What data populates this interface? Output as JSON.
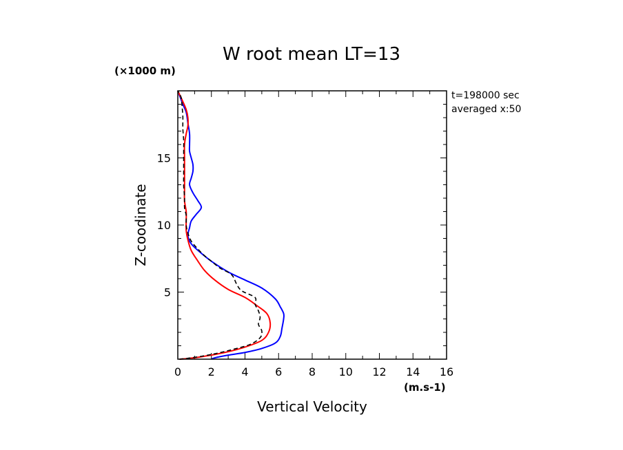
{
  "chart_data": {
    "type": "line",
    "title": "W root mean LT=13",
    "xlabel": "Vertical Velocity",
    "ylabel": "Z-coodinate",
    "x_unit": "(m.s-1)",
    "y_unit": "(×1000 m)",
    "xlim": [
      0,
      16
    ],
    "ylim": [
      0,
      20
    ],
    "x_ticks": [
      0,
      2,
      4,
      6,
      8,
      10,
      12,
      14,
      16
    ],
    "y_ticks": [
      5,
      10,
      15
    ],
    "grid": false,
    "annotations": [
      "t=198000 sec",
      "averaged  x:50"
    ],
    "series": [
      {
        "color": "#0000ff",
        "dash": "solid",
        "points": [
          [
            2.0,
            0.0
          ],
          [
            2.2,
            0.1
          ],
          [
            3.0,
            0.3
          ],
          [
            4.0,
            0.5
          ],
          [
            5.0,
            0.8
          ],
          [
            5.8,
            1.2
          ],
          [
            6.1,
            1.7
          ],
          [
            6.2,
            2.3
          ],
          [
            6.3,
            3.0
          ],
          [
            6.3,
            3.4
          ],
          [
            6.1,
            3.9
          ],
          [
            5.8,
            4.5
          ],
          [
            5.0,
            5.3
          ],
          [
            4.0,
            5.9
          ],
          [
            3.0,
            6.5
          ],
          [
            2.0,
            7.3
          ],
          [
            1.3,
            8.0
          ],
          [
            0.8,
            8.6
          ],
          [
            0.6,
            9.2
          ],
          [
            0.7,
            9.8
          ],
          [
            0.8,
            10.3
          ],
          [
            1.1,
            10.8
          ],
          [
            1.4,
            11.3
          ],
          [
            1.2,
            11.8
          ],
          [
            0.9,
            12.4
          ],
          [
            0.7,
            13.0
          ],
          [
            0.8,
            13.5
          ],
          [
            0.9,
            14.0
          ],
          [
            0.9,
            14.5
          ],
          [
            0.8,
            15.0
          ],
          [
            0.7,
            15.5
          ],
          [
            0.7,
            16.0
          ],
          [
            0.7,
            16.8
          ],
          [
            0.6,
            17.6
          ],
          [
            0.5,
            18.4
          ],
          [
            0.3,
            19.0
          ],
          [
            0.0,
            20.0
          ]
        ]
      },
      {
        "color": "#ff0000",
        "dash": "solid",
        "points": [
          [
            0.1,
            0.0
          ],
          [
            0.6,
            0.05
          ],
          [
            1.5,
            0.2
          ],
          [
            2.8,
            0.5
          ],
          [
            4.0,
            0.9
          ],
          [
            5.0,
            1.4
          ],
          [
            5.4,
            2.0
          ],
          [
            5.5,
            2.7
          ],
          [
            5.3,
            3.4
          ],
          [
            4.7,
            4.0
          ],
          [
            4.0,
            4.6
          ],
          [
            3.0,
            5.2
          ],
          [
            2.2,
            5.9
          ],
          [
            1.6,
            6.6
          ],
          [
            1.2,
            7.3
          ],
          [
            0.8,
            8.1
          ],
          [
            0.6,
            8.9
          ],
          [
            0.5,
            9.6
          ],
          [
            0.5,
            10.3
          ],
          [
            0.5,
            11.0
          ],
          [
            0.4,
            11.8
          ],
          [
            0.4,
            12.6
          ],
          [
            0.4,
            13.3
          ],
          [
            0.4,
            14.0
          ],
          [
            0.4,
            15.0
          ],
          [
            0.4,
            16.0
          ],
          [
            0.5,
            16.8
          ],
          [
            0.6,
            17.4
          ],
          [
            0.6,
            18.0
          ],
          [
            0.5,
            18.6
          ],
          [
            0.3,
            19.2
          ],
          [
            0.0,
            20.0
          ]
        ]
      },
      {
        "color": "#000000",
        "dash": "dashed",
        "points": [
          [
            0.1,
            0.0
          ],
          [
            0.8,
            0.1
          ],
          [
            2.0,
            0.35
          ],
          [
            3.2,
            0.7
          ],
          [
            4.3,
            1.1
          ],
          [
            4.9,
            1.6
          ],
          [
            5.0,
            2.1
          ],
          [
            4.8,
            2.6
          ],
          [
            4.9,
            3.1
          ],
          [
            4.8,
            3.6
          ],
          [
            4.6,
            4.1
          ],
          [
            4.6,
            4.6
          ],
          [
            3.8,
            5.1
          ],
          [
            3.5,
            5.6
          ],
          [
            3.2,
            6.3
          ],
          [
            2.5,
            6.8
          ],
          [
            2.0,
            7.3
          ],
          [
            1.6,
            7.7
          ],
          [
            1.2,
            8.2
          ],
          [
            0.8,
            8.8
          ],
          [
            0.6,
            9.4
          ],
          [
            0.5,
            10.0
          ],
          [
            0.5,
            10.7
          ],
          [
            0.4,
            11.3
          ],
          [
            0.4,
            12.1
          ],
          [
            0.35,
            12.9
          ],
          [
            0.35,
            13.8
          ],
          [
            0.35,
            14.6
          ],
          [
            0.35,
            15.5
          ],
          [
            0.35,
            16.3
          ],
          [
            0.3,
            17.2
          ],
          [
            0.3,
            18.1
          ],
          [
            0.25,
            18.9
          ],
          [
            0.2,
            19.5
          ],
          [
            0.0,
            20.0
          ]
        ]
      }
    ]
  }
}
